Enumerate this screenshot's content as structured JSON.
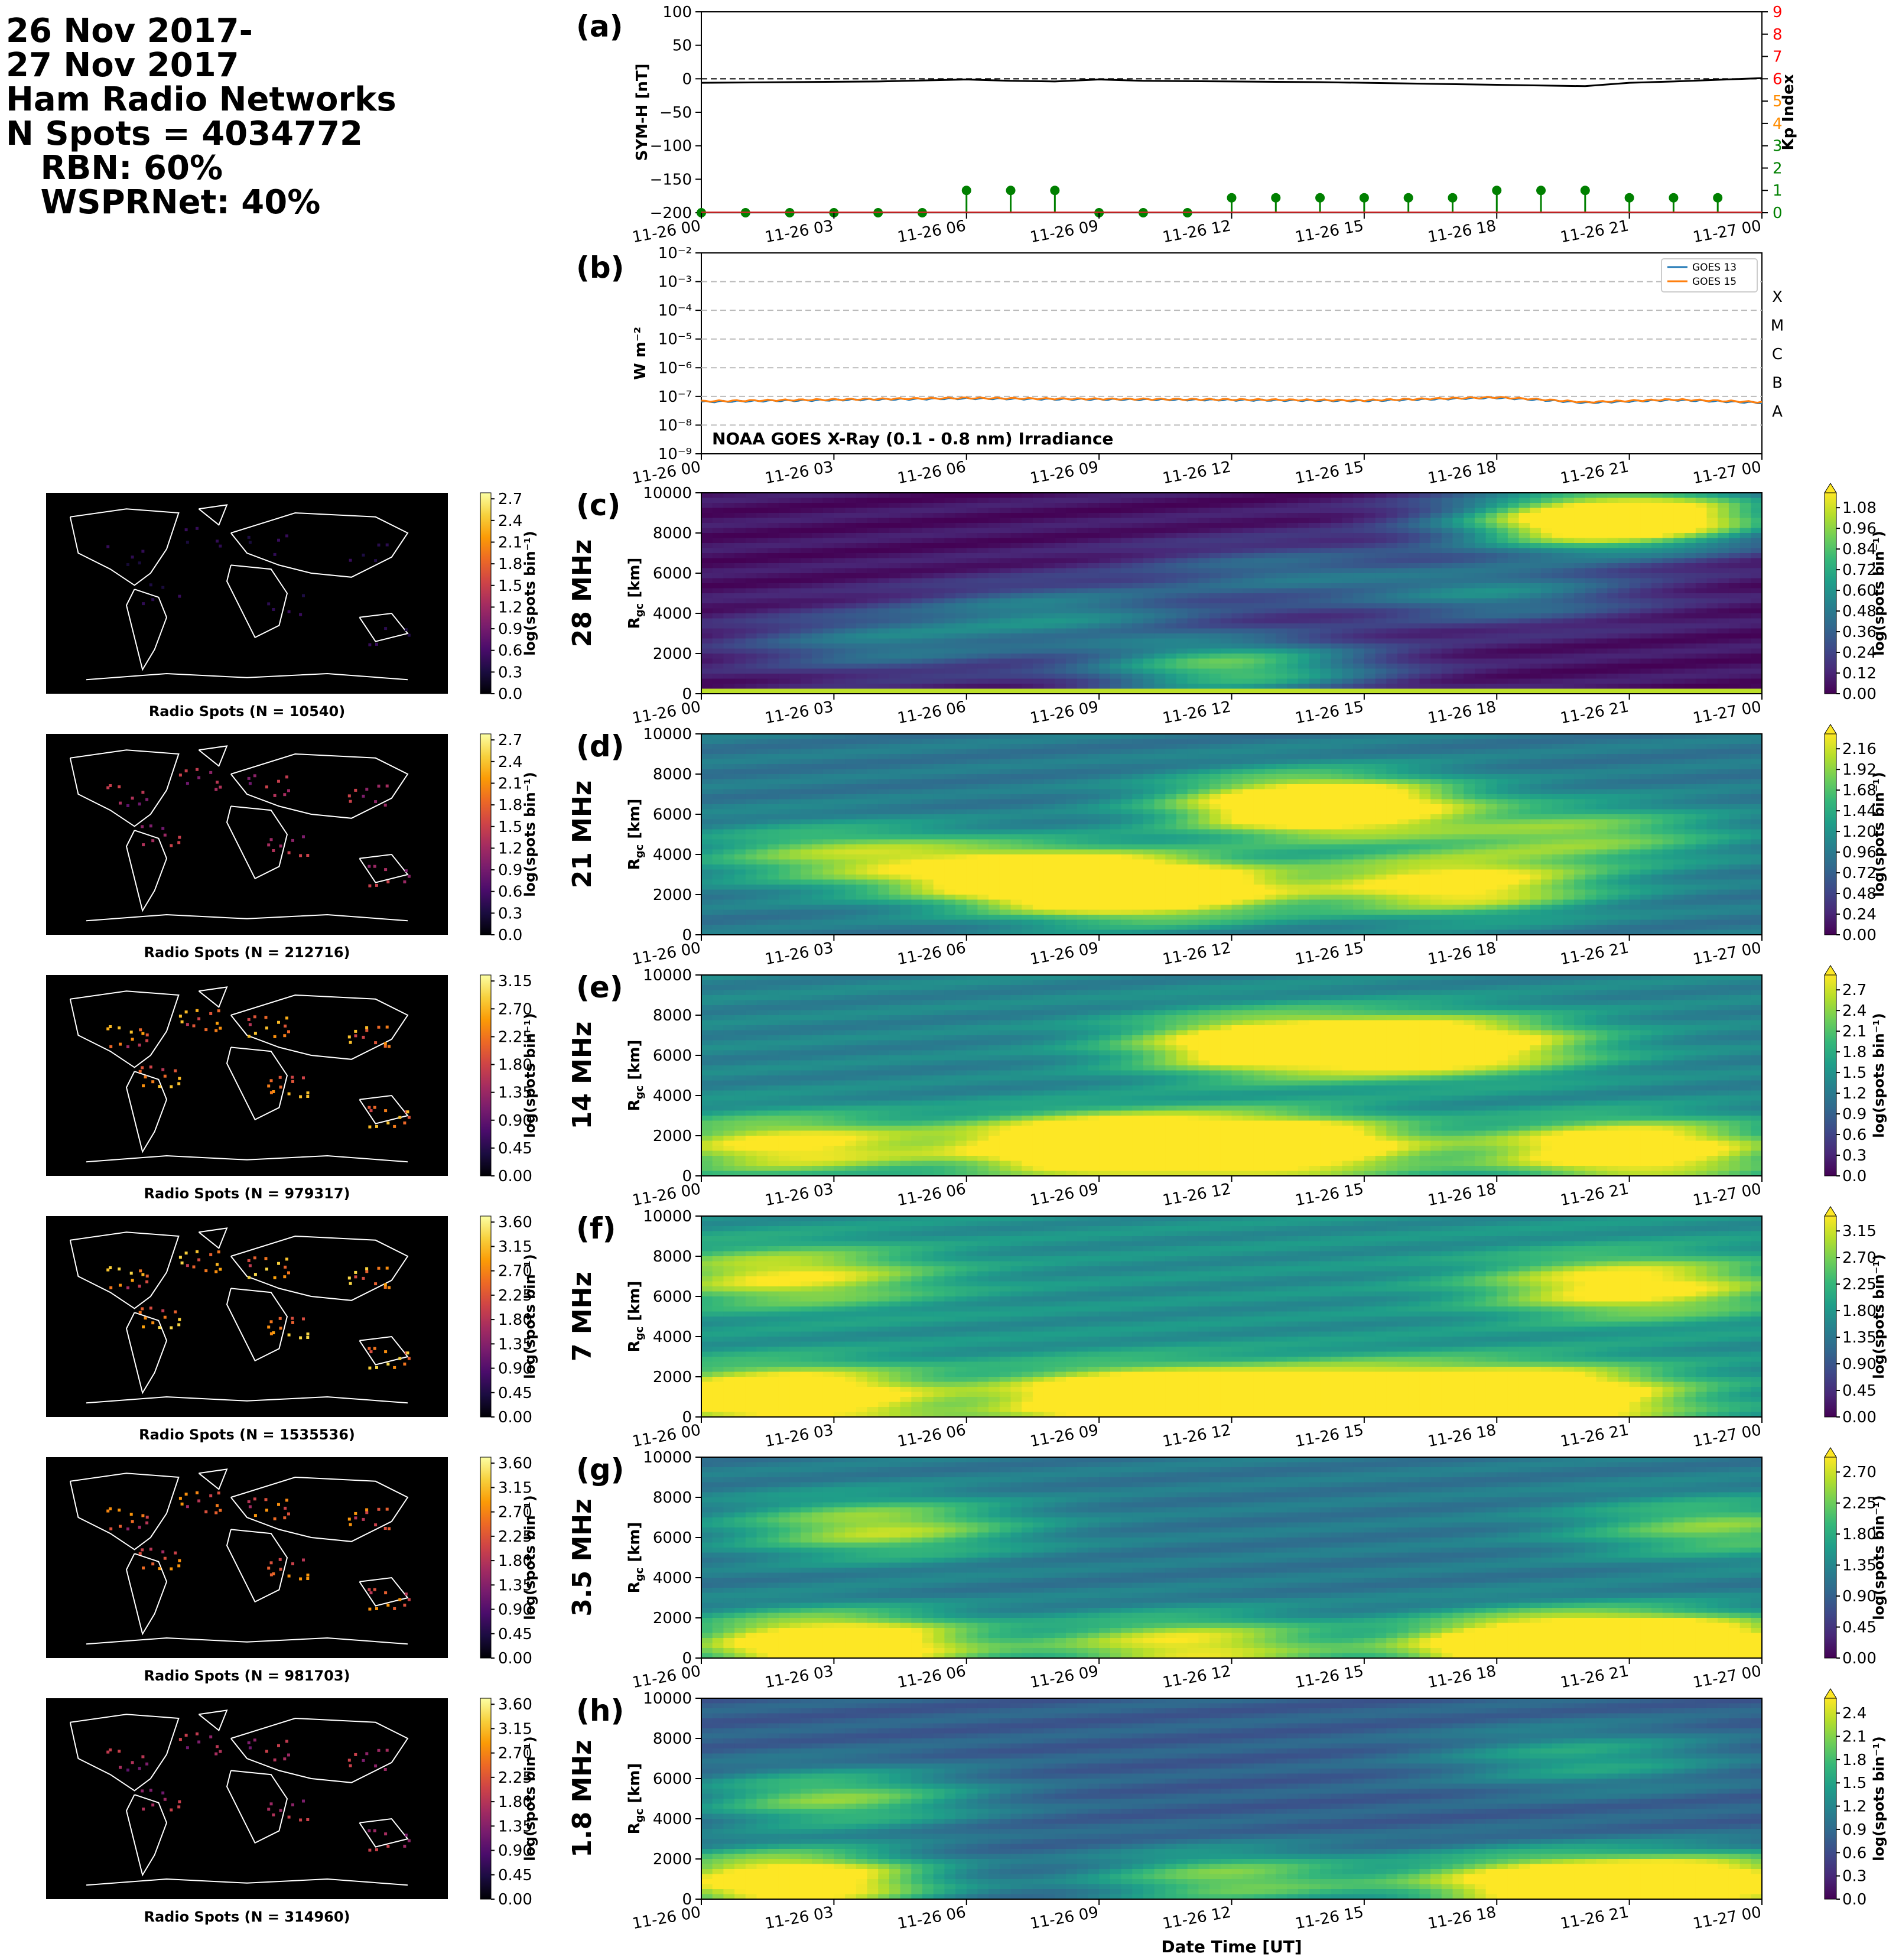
{
  "header": {
    "lines": [
      "26 Nov 2017-",
      "27 Nov 2017",
      "Ham Radio Networks",
      "N Spots = 4034772",
      "   RBN: 60%",
      "   WSPRNet: 40%"
    ]
  },
  "colors": {
    "symh_line": "#000000",
    "kp_stem": "#008000",
    "kp_axis_high": "#ff0000",
    "kp_axis_mid": "#ff8c00",
    "kp_axis_low": "#008000",
    "goes13": "#1f77b4",
    "goes15": "#ff7f0e",
    "map_coast": "#ffffff",
    "map_background": "#000000"
  },
  "time_ticks": [
    "11-26 00",
    "11-26 03",
    "11-26 06",
    "11-26 09",
    "11-26 12",
    "11-26 15",
    "11-26 18",
    "11-26 21",
    "11-27 00"
  ],
  "chart_data": [
    {
      "id": "a",
      "type": "line",
      "panel_label": "(a)",
      "ylabel": "SYM-H [nT]",
      "ylabel2": "Kp Index",
      "ylim": [
        -200,
        100
      ],
      "y_ticks": [
        "100",
        "50",
        "0",
        "−50",
        "−100",
        "−150",
        "−200"
      ],
      "y2lim": [
        0,
        9
      ],
      "y2_ticks": [
        "0",
        "1",
        "2",
        "3",
        "4",
        "5",
        "6",
        "7",
        "8",
        "9"
      ],
      "series": [
        {
          "values_x_hours": [
            0,
            2,
            4,
            6,
            7,
            8,
            9,
            10,
            12,
            14,
            16,
            18,
            20,
            21,
            22,
            24
          ],
          "values_y_nT": [
            -6,
            -5,
            -4,
            -1,
            -3,
            -4,
            -1,
            -3,
            -4,
            -5,
            -7,
            -9,
            -11,
            -6,
            -4,
            1
          ]
        },
        {
          "values_x_hours": [
            0,
            1,
            2,
            3,
            4,
            5,
            6,
            7,
            8,
            9,
            10,
            11,
            12,
            13,
            14,
            15,
            16,
            17,
            18,
            19,
            20,
            21,
            22,
            23
          ],
          "kp": [
            0,
            0,
            0,
            0,
            0,
            0,
            1,
            1,
            1,
            0,
            0,
            0,
            0.67,
            0.67,
            0.67,
            0.67,
            0.67,
            0.67,
            1,
            1,
            1,
            0.67,
            0.67,
            0.67
          ]
        }
      ]
    },
    {
      "id": "b",
      "type": "line",
      "panel_label": "(b)",
      "ylabel": "W m⁻²",
      "yscale": "log",
      "ylim": [
        1e-09,
        0.01
      ],
      "y_ticks": [
        "10⁻²",
        "10⁻³",
        "10⁻⁴",
        "10⁻⁵",
        "10⁻⁶",
        "10⁻⁷",
        "10⁻⁸",
        "10⁻⁹"
      ],
      "flare_classes": [
        "X",
        "M",
        "C",
        "B",
        "A"
      ],
      "annotation": "NOAA GOES X-Ray (0.1 - 0.8 nm) Irradiance",
      "legend": "top-right",
      "series": [
        {
          "name": "GOES 13",
          "x_hours": [
            0,
            3,
            6,
            8,
            12,
            15,
            18,
            20,
            22,
            24
          ],
          "values": [
            6.5e-08,
            7.5e-08,
            8.5e-08,
            8e-08,
            7.5e-08,
            7e-08,
            9e-08,
            6e-08,
            7.5e-08,
            6e-08
          ]
        },
        {
          "name": "GOES 15",
          "x_hours": [
            0,
            3,
            6,
            8,
            12,
            15,
            18,
            20,
            22,
            24
          ],
          "values": [
            6.8e-08,
            7.8e-08,
            8.8e-08,
            8.3e-08,
            7.8e-08,
            7.3e-08,
            9.3e-08,
            6.3e-08,
            7.8e-08,
            6.3e-08
          ]
        }
      ]
    }
  ],
  "bands": [
    {
      "label": "28 MHz",
      "panel": "(c)",
      "spots": "Radio Spots (N = 10540)",
      "cbar_ticks": [
        "0.00",
        "0.12",
        "0.24",
        "0.36",
        "0.48",
        "0.60",
        "0.72",
        "0.84",
        "0.96",
        "1.08"
      ],
      "cbar_max": 1.08,
      "map_ticks": [
        "0.0",
        "0.3",
        "0.6",
        "0.9",
        "1.2",
        "1.5",
        "1.8",
        "2.1",
        "2.4",
        "2.7"
      ],
      "map_max": 2.7
    },
    {
      "label": "21 MHz",
      "panel": "(d)",
      "spots": "Radio Spots (N = 212716)",
      "cbar_ticks": [
        "0.00",
        "0.24",
        "0.48",
        "0.72",
        "0.96",
        "1.20",
        "1.44",
        "1.68",
        "1.92",
        "2.16"
      ],
      "cbar_max": 2.16,
      "map_ticks": [
        "0.0",
        "0.3",
        "0.6",
        "0.9",
        "1.2",
        "1.5",
        "1.8",
        "2.1",
        "2.4",
        "2.7"
      ],
      "map_max": 2.7
    },
    {
      "label": "14 MHz",
      "panel": "(e)",
      "spots": "Radio Spots (N = 979317)",
      "cbar_ticks": [
        "0.0",
        "0.3",
        "0.6",
        "0.9",
        "1.2",
        "1.5",
        "1.8",
        "2.1",
        "2.4",
        "2.7"
      ],
      "cbar_max": 2.7,
      "map_ticks": [
        "0.00",
        "0.45",
        "0.90",
        "1.35",
        "1.80",
        "2.25",
        "2.70",
        "3.15"
      ],
      "map_max": 3.15
    },
    {
      "label": "7 MHz",
      "panel": "(f)",
      "spots": "Radio Spots (N = 1535536)",
      "cbar_ticks": [
        "0.00",
        "0.45",
        "0.90",
        "1.35",
        "1.80",
        "2.25",
        "2.70",
        "3.15"
      ],
      "cbar_max": 3.15,
      "map_ticks": [
        "0.00",
        "0.45",
        "0.90",
        "1.35",
        "1.80",
        "2.25",
        "2.70",
        "3.15",
        "3.60"
      ],
      "map_max": 3.6
    },
    {
      "label": "3.5 MHz",
      "panel": "(g)",
      "spots": "Radio Spots (N = 981703)",
      "cbar_ticks": [
        "0.00",
        "0.45",
        "0.90",
        "1.35",
        "1.80",
        "2.25",
        "2.70"
      ],
      "cbar_max": 2.7,
      "map_ticks": [
        "0.00",
        "0.45",
        "0.90",
        "1.35",
        "1.80",
        "2.25",
        "2.70",
        "3.15",
        "3.60"
      ],
      "map_max": 3.6
    },
    {
      "label": "1.8 MHz",
      "panel": "(h)",
      "spots": "Radio Spots (N = 314960)",
      "cbar_ticks": [
        "0.0",
        "0.3",
        "0.6",
        "0.9",
        "1.2",
        "1.5",
        "1.8",
        "2.1",
        "2.4"
      ],
      "cbar_max": 2.4,
      "map_ticks": [
        "0.00",
        "0.45",
        "0.90",
        "1.35",
        "1.80",
        "2.25",
        "2.70",
        "3.15",
        "3.60"
      ],
      "map_max": 3.6
    }
  ],
  "heatmap_common": {
    "type": "heatmap",
    "ylabel": "R",
    "ylabel_sub": "gc",
    "ylabel_unit": " [km]",
    "y_ticks": [
      "0",
      "2000",
      "4000",
      "6000",
      "8000",
      "10000"
    ],
    "ylim": [
      0,
      10000
    ],
    "xlim_hours": [
      0,
      24
    ],
    "colorbar_label": "log(spots bin⁻¹)"
  },
  "xlabel": "Date Time [UT]"
}
